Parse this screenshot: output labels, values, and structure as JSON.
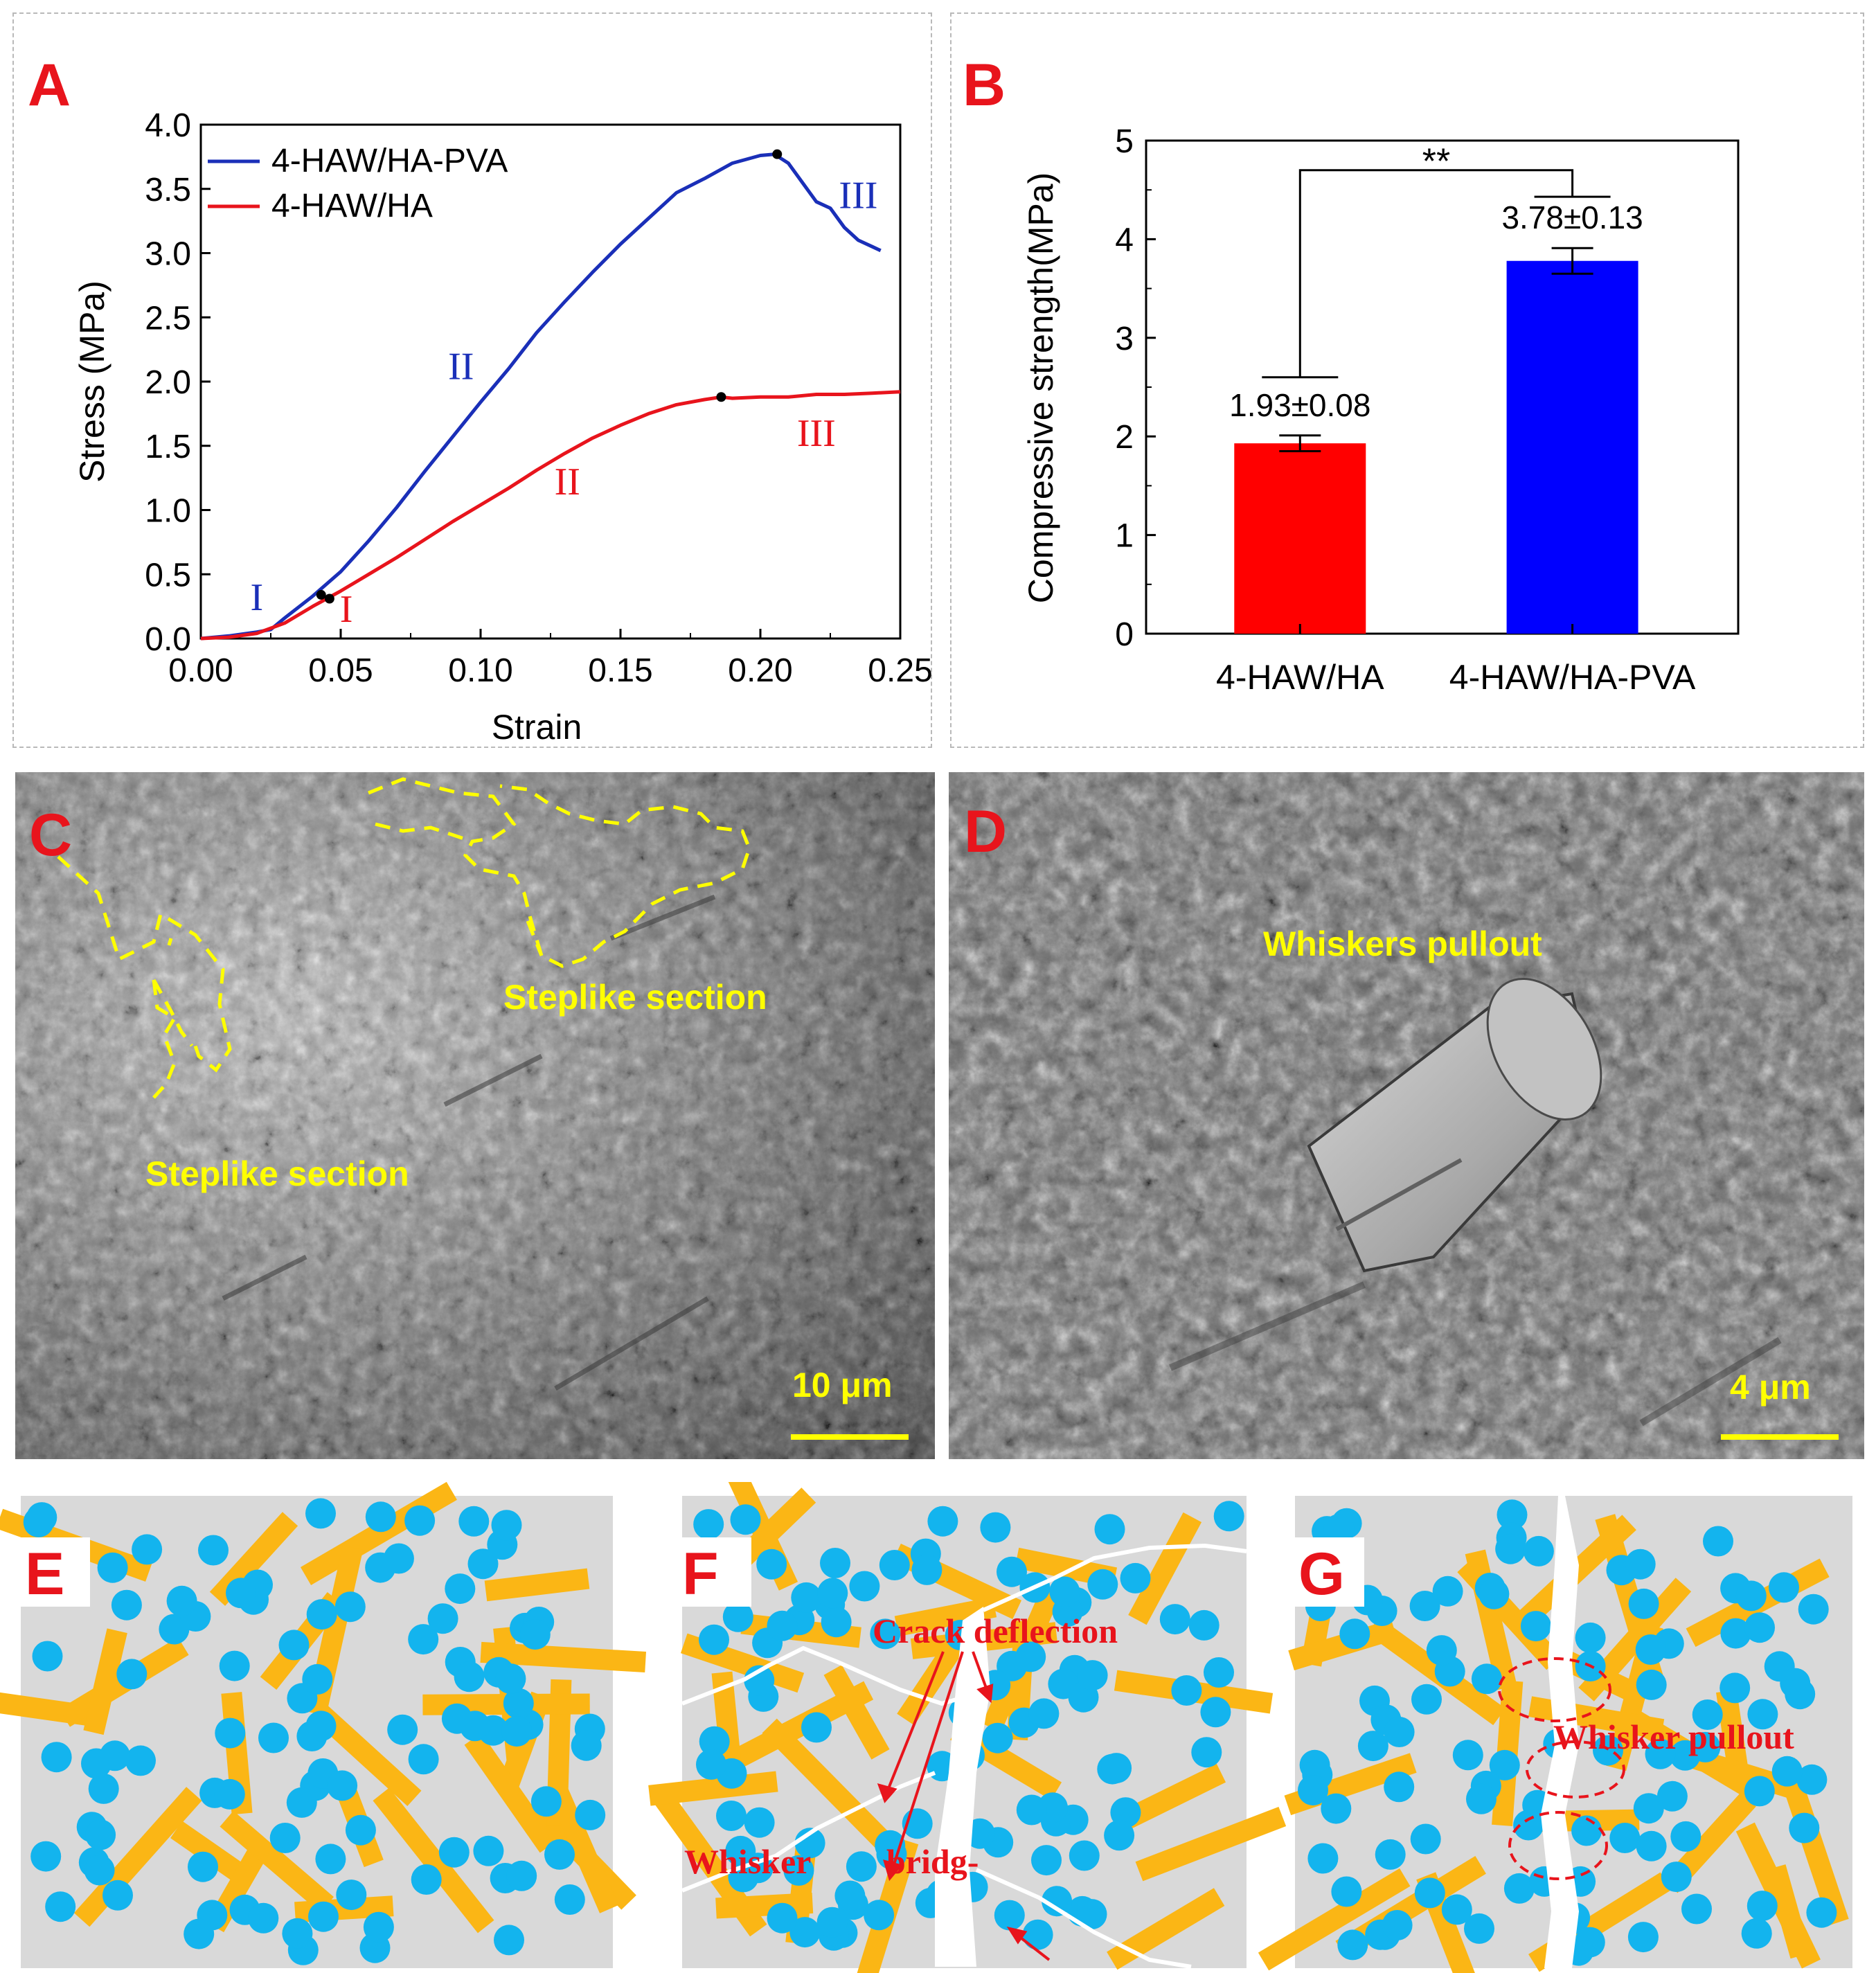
{
  "panel_labels": {
    "a": "A",
    "b": "B",
    "c": "C",
    "d": "D",
    "e": "E",
    "f": "F",
    "g": "G"
  },
  "colors": {
    "pva": "#1a2fb8",
    "ha": "#e8141c",
    "bar_ha": "#ff0000",
    "bar_pva": "#0000ff",
    "whisker": "#fbb615",
    "particle": "#13b4ee",
    "matrix": "#d9d9d9",
    "sem_text": "#ffff00"
  },
  "chart_data": [
    {
      "type": "line",
      "title": "",
      "xlabel": "Strain",
      "ylabel": "Stress (MPa)",
      "xlim": [
        0,
        0.25
      ],
      "ylim": [
        0,
        4.0
      ],
      "xticks": [
        "0.00",
        "0.05",
        "0.10",
        "0.15",
        "0.20",
        "0.25"
      ],
      "yticks": [
        "0.0",
        "0.5",
        "1.0",
        "1.5",
        "2.0",
        "2.5",
        "3.0",
        "3.5",
        "4.0"
      ],
      "series": [
        {
          "name": "4-HAW/HA-PVA",
          "color": "#1a2fb8",
          "x": [
            0,
            0.01,
            0.02,
            0.025,
            0.03,
            0.04,
            0.05,
            0.06,
            0.07,
            0.08,
            0.09,
            0.1,
            0.11,
            0.12,
            0.13,
            0.14,
            0.15,
            0.16,
            0.17,
            0.18,
            0.19,
            0.2,
            0.205,
            0.21,
            0.215,
            0.22,
            0.225,
            0.23,
            0.235,
            0.24,
            0.243
          ],
          "y": [
            0,
            0.02,
            0.05,
            0.07,
            0.16,
            0.33,
            0.52,
            0.76,
            1.02,
            1.3,
            1.57,
            1.84,
            2.1,
            2.38,
            2.62,
            2.85,
            3.07,
            3.27,
            3.47,
            3.58,
            3.7,
            3.76,
            3.77,
            3.7,
            3.55,
            3.4,
            3.35,
            3.2,
            3.1,
            3.05,
            3.02
          ]
        },
        {
          "name": "4-HAW/HA",
          "color": "#e8141c",
          "x": [
            0,
            0.01,
            0.02,
            0.03,
            0.04,
            0.045,
            0.05,
            0.06,
            0.07,
            0.08,
            0.09,
            0.1,
            0.11,
            0.12,
            0.13,
            0.14,
            0.15,
            0.16,
            0.17,
            0.18,
            0.186,
            0.19,
            0.2,
            0.21,
            0.22,
            0.23,
            0.24,
            0.25
          ],
          "y": [
            0,
            0.01,
            0.04,
            0.12,
            0.25,
            0.31,
            0.37,
            0.5,
            0.63,
            0.77,
            0.91,
            1.04,
            1.17,
            1.31,
            1.44,
            1.56,
            1.66,
            1.75,
            1.82,
            1.86,
            1.88,
            1.87,
            1.88,
            1.88,
            1.9,
            1.9,
            1.91,
            1.92
          ]
        }
      ],
      "markers": [
        {
          "series": "4-HAW/HA-PVA",
          "x": 0.043,
          "y": 0.34
        },
        {
          "series": "4-HAW/HA-PVA",
          "x": 0.206,
          "y": 3.77
        },
        {
          "series": "4-HAW/HA",
          "x": 0.046,
          "y": 0.31
        },
        {
          "series": "4-HAW/HA",
          "x": 0.186,
          "y": 1.88
        }
      ],
      "annotations": [
        {
          "text": "I",
          "color": "#1a2fb8",
          "x": 0.02,
          "y": 0.22
        },
        {
          "text": "II",
          "color": "#1a2fb8",
          "x": 0.093,
          "y": 2.02
        },
        {
          "text": "III",
          "color": "#1a2fb8",
          "x": 0.235,
          "y": 3.35
        },
        {
          "text": "I",
          "color": "#e8141c",
          "x": 0.052,
          "y": 0.13
        },
        {
          "text": "II",
          "color": "#e8141c",
          "x": 0.131,
          "y": 1.12
        },
        {
          "text": "III",
          "color": "#e8141c",
          "x": 0.22,
          "y": 1.5
        }
      ],
      "legend": "top-left"
    },
    {
      "type": "bar",
      "title": "",
      "xlabel": "",
      "ylabel": "Compressive strength(MPa)",
      "ylim": [
        0,
        5
      ],
      "yticks": [
        "0",
        "1",
        "2",
        "3",
        "4",
        "5"
      ],
      "categories": [
        "4-HAW/HA",
        "4-HAW/HA-PVA"
      ],
      "values": [
        1.93,
        3.78
      ],
      "errors": [
        0.08,
        0.13
      ],
      "value_labels": [
        "1.93±0.08",
        "3.78±0.13"
      ],
      "colors": [
        "#ff0000",
        "#0000ff"
      ],
      "significance": {
        "text": "**",
        "from_category": 0,
        "to_category": 1,
        "left_level": 2.6,
        "right_level": 4.43,
        "top": 4.7
      }
    }
  ],
  "sem_c": {
    "labels": [
      "Steplike section",
      "Steplike section"
    ],
    "scale": "10 μm"
  },
  "sem_d": {
    "label": "Whiskers pullout",
    "scale": "4 μm"
  },
  "schematic_f": {
    "labels": [
      "Crack deflection",
      "Whisker",
      "bridg-"
    ]
  },
  "schematic_g": {
    "labels": [
      "Whisker pullout"
    ]
  }
}
